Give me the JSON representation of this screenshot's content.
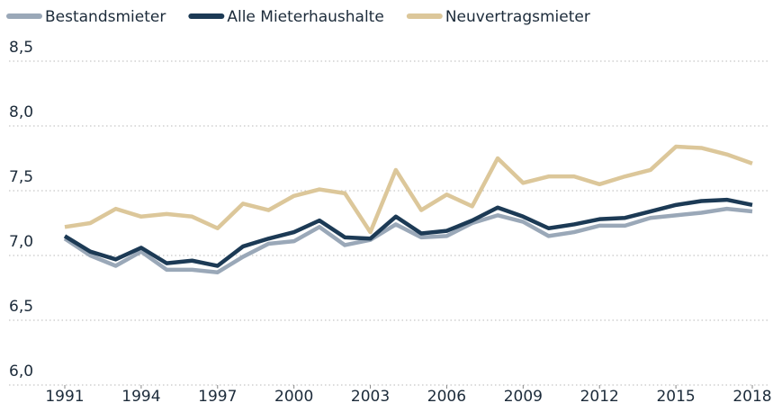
{
  "chart_data": {
    "type": "line",
    "x": [
      1991,
      1992,
      1993,
      1994,
      1995,
      1996,
      1997,
      1998,
      1999,
      2000,
      2001,
      2002,
      2003,
      2004,
      2005,
      2006,
      2007,
      2008,
      2009,
      2010,
      2011,
      2012,
      2013,
      2014,
      2015,
      2016,
      2017,
      2018
    ],
    "series": [
      {
        "name": "Bestandsmieter",
        "color": "#9aa8b8",
        "values": [
          7.13,
          7.0,
          6.92,
          7.03,
          6.89,
          6.89,
          6.87,
          6.99,
          7.09,
          7.11,
          7.22,
          7.08,
          7.12,
          7.24,
          7.14,
          7.15,
          7.25,
          7.31,
          7.26,
          7.15,
          7.18,
          7.23,
          7.23,
          7.29,
          7.31,
          7.33,
          7.36,
          7.34
        ]
      },
      {
        "name": "Alle Mieterhaushalte",
        "color": "#1c3a55",
        "values": [
          7.15,
          7.03,
          6.97,
          7.06,
          6.94,
          6.96,
          6.92,
          7.07,
          7.13,
          7.18,
          7.27,
          7.14,
          7.13,
          7.3,
          7.17,
          7.19,
          7.27,
          7.37,
          7.3,
          7.21,
          7.24,
          7.28,
          7.29,
          7.34,
          7.39,
          7.42,
          7.43,
          7.39
        ]
      },
      {
        "name": "Neuvertragsmieter",
        "color": "#dcc79a",
        "values": [
          7.22,
          7.25,
          7.36,
          7.3,
          7.32,
          7.3,
          7.21,
          7.4,
          7.35,
          7.46,
          7.51,
          7.48,
          7.18,
          7.66,
          7.35,
          7.47,
          7.38,
          7.75,
          7.56,
          7.61,
          7.61,
          7.55,
          7.61,
          7.66,
          7.84,
          7.83,
          7.78,
          7.71
        ]
      }
    ],
    "xlim": [
      1991,
      2018
    ],
    "xticks": [
      1991,
      1994,
      1997,
      2000,
      2003,
      2006,
      2009,
      2012,
      2015,
      2018
    ],
    "ylim": [
      6,
      8.5
    ],
    "yticks": [
      {
        "value": 6,
        "label": "6,0"
      },
      {
        "value": 6.5,
        "label": "6,5"
      },
      {
        "value": 7,
        "label": "7,0"
      },
      {
        "value": 7.5,
        "label": "7,5"
      },
      {
        "value": 8,
        "label": "8,0"
      },
      {
        "value": 8.5,
        "label": "8,5"
      }
    ],
    "grid": true
  }
}
